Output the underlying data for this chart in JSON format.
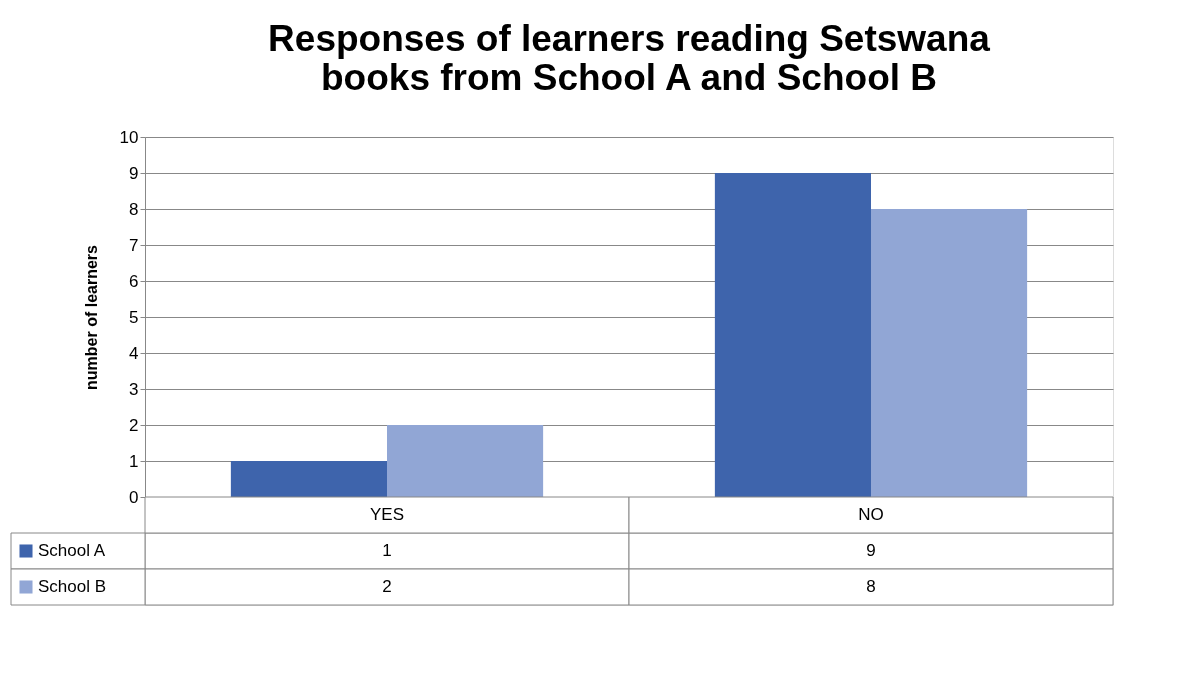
{
  "chart_data": {
    "type": "bar",
    "title": [
      "Responses of learners reading Setswana",
      "books from School A and School B"
    ],
    "ylabel": "number of learners",
    "categories": [
      "YES",
      "NO"
    ],
    "series": [
      {
        "name": "School A",
        "color": "#3e64ac",
        "values": [
          1,
          9
        ]
      },
      {
        "name": "School B",
        "color": "#91a6d5",
        "values": [
          2,
          8
        ]
      }
    ],
    "ylim": [
      0,
      10
    ],
    "yticks": [
      0,
      1,
      2,
      3,
      4,
      5,
      6,
      7,
      8,
      9,
      10
    ],
    "grid": "y",
    "legend": "bottom",
    "data_labels": true
  }
}
